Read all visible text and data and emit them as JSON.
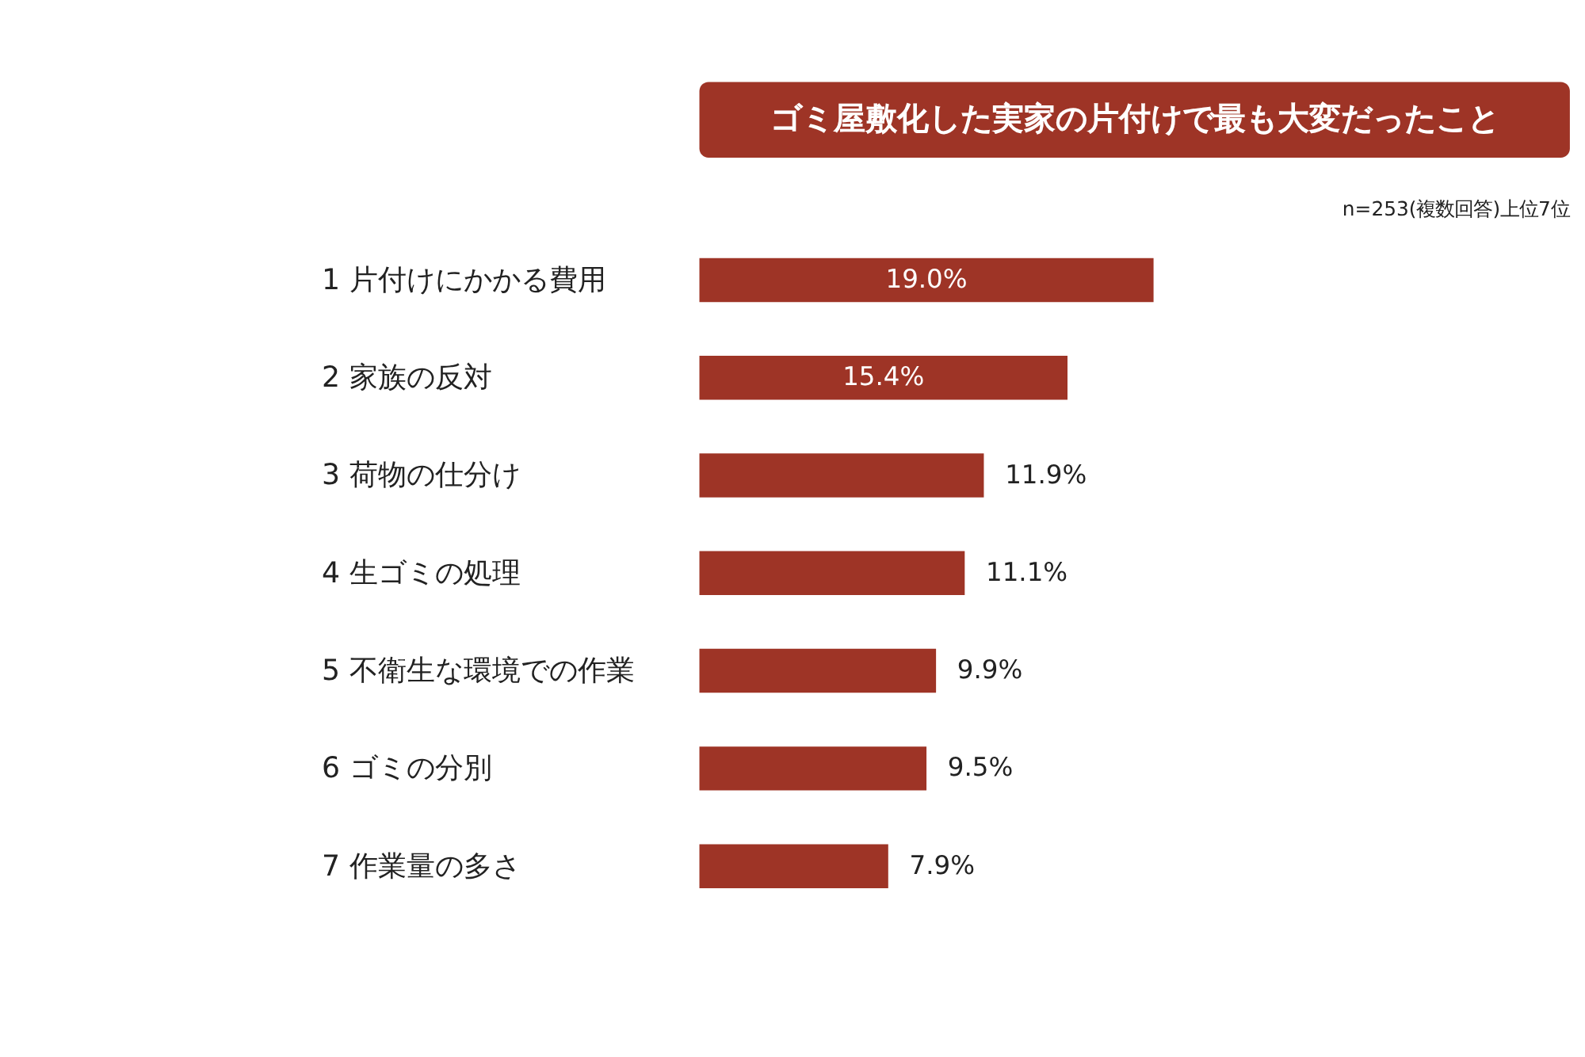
{
  "chart_data": {
    "type": "bar",
    "orientation": "horizontal",
    "title": "ゴミ屋敷化した実家の片付けで最も大変だったこと",
    "subtitle": "n=253(複数回答)上位7位",
    "categories": [
      "1 片付けにかかる費用",
      "2 家族の反対",
      "3 荷物の仕分け",
      "4 生ゴミの処理",
      "5 不衛生な環境での作業",
      "6 ゴミの分別",
      "7 作業量の多さ"
    ],
    "values": [
      19.0,
      15.4,
      11.9,
      11.1,
      9.9,
      9.5,
      7.9
    ],
    "value_labels": [
      "19.0%",
      "15.4%",
      "11.9%",
      "11.1%",
      "9.9%",
      "9.5%",
      "7.9%"
    ],
    "color": "#9e3426"
  }
}
